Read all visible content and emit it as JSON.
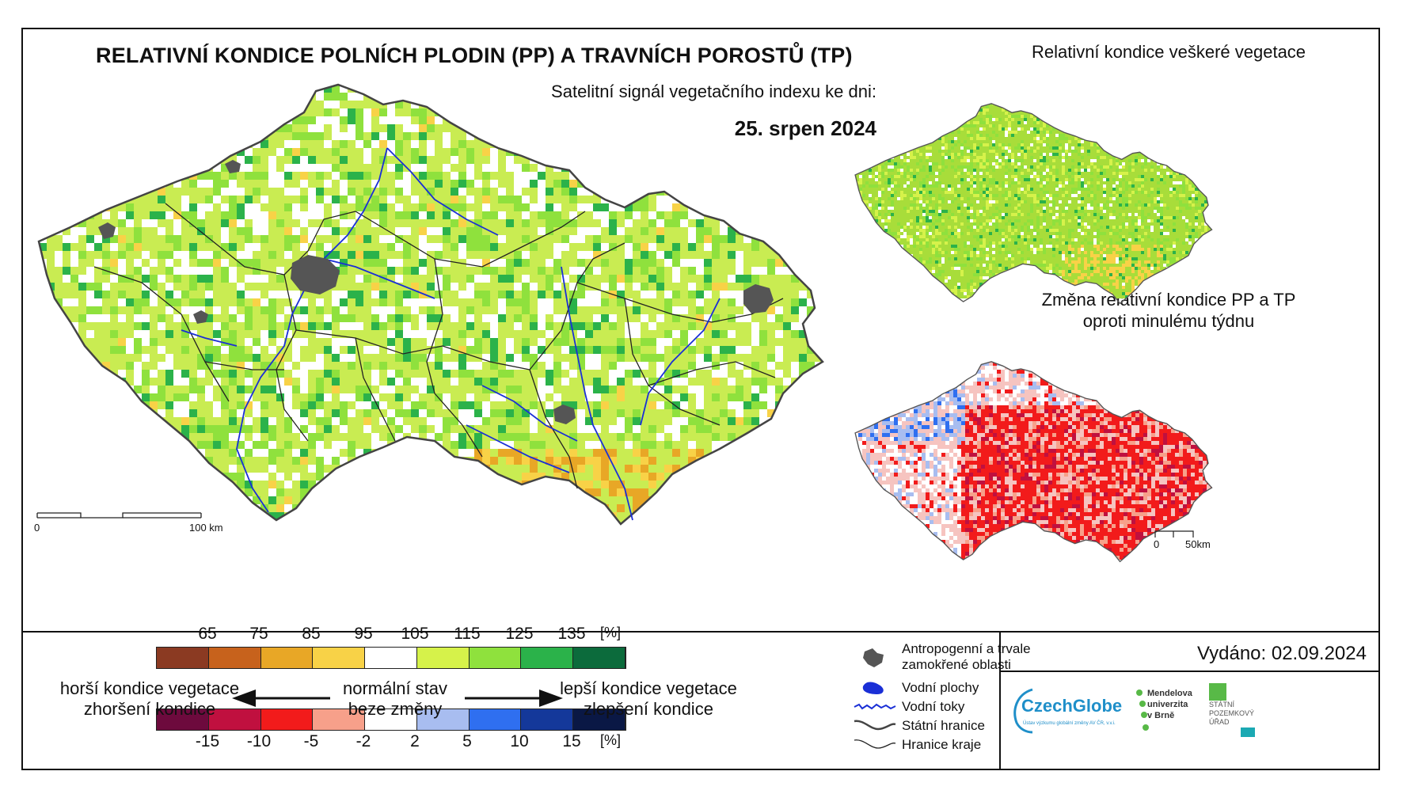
{
  "header": {
    "title": "RELATIVNÍ KONDICE POLNÍCH PLODIN (PP) A TRAVNÍCH POROSTŮ (TP)",
    "subtitle": "Satelitní signál vegetačního indexu ke dni:",
    "date": "25. srpen 2024"
  },
  "maps": {
    "main_scale": {
      "start": "0",
      "end": "100 km"
    },
    "top_right_title": "Relativní kondice veškeré vegetace",
    "bottom_right_title_line1": "Změna relativní kondice PP a TP",
    "bottom_right_title_line2": "oproti minulému týdnu",
    "small_scale": {
      "start": "0",
      "end": "50km"
    }
  },
  "legend": {
    "condition_ticks": [
      "65",
      "75",
      "85",
      "95",
      "105",
      "115",
      "125",
      "135"
    ],
    "condition_unit": "[%]",
    "condition_colors": [
      "#8b3a22",
      "#c7621c",
      "#e8a726",
      "#f8d247",
      "#ffffff",
      "#d6f24a",
      "#8fe13d",
      "#2bb24a",
      "#0c6b3c"
    ],
    "change_ticks": [
      "-15",
      "-10",
      "-5",
      "-2",
      "2",
      "5",
      "10",
      "15"
    ],
    "change_unit": "[%]",
    "change_colors": [
      "#6d0a3d",
      "#c0103f",
      "#f21b1b",
      "#f7a08a",
      "#ffffff",
      "#a8bdf0",
      "#2f6ff0",
      "#14389a",
      "#0a1845"
    ],
    "worse_line1": "horší kondice vegetace",
    "worse_line2": "zhoršení kondice",
    "normal_line1": "normální stav",
    "normal_line2": "beze změny",
    "better_line1": "lepší kondice vegetace",
    "better_line2": "zlepšení kondice"
  },
  "symbols": {
    "anthropogenic_line1": "Antropogenní a trvale",
    "anthropogenic_line2": "zamokřené oblasti",
    "water_bodies": "Vodní plochy",
    "water_streams": "Vodní toky",
    "state_border": "Státní hranice",
    "region_border": "Hranice kraje"
  },
  "issued": "Vydáno: 02.09.2024",
  "logos": {
    "czechglobe": "CzechGlobe",
    "czechglobe_sub": "Ústav výzkumu globální změny AV ČR, v.v.i.",
    "mendel_line1": "Mendelova",
    "mendel_line2": "univerzita",
    "mendel_line3": "v Brně",
    "spu_line1": "STÁTNÍ",
    "spu_line2": "POZEMKOVÝ",
    "spu_line3": "ÚŘAD"
  }
}
